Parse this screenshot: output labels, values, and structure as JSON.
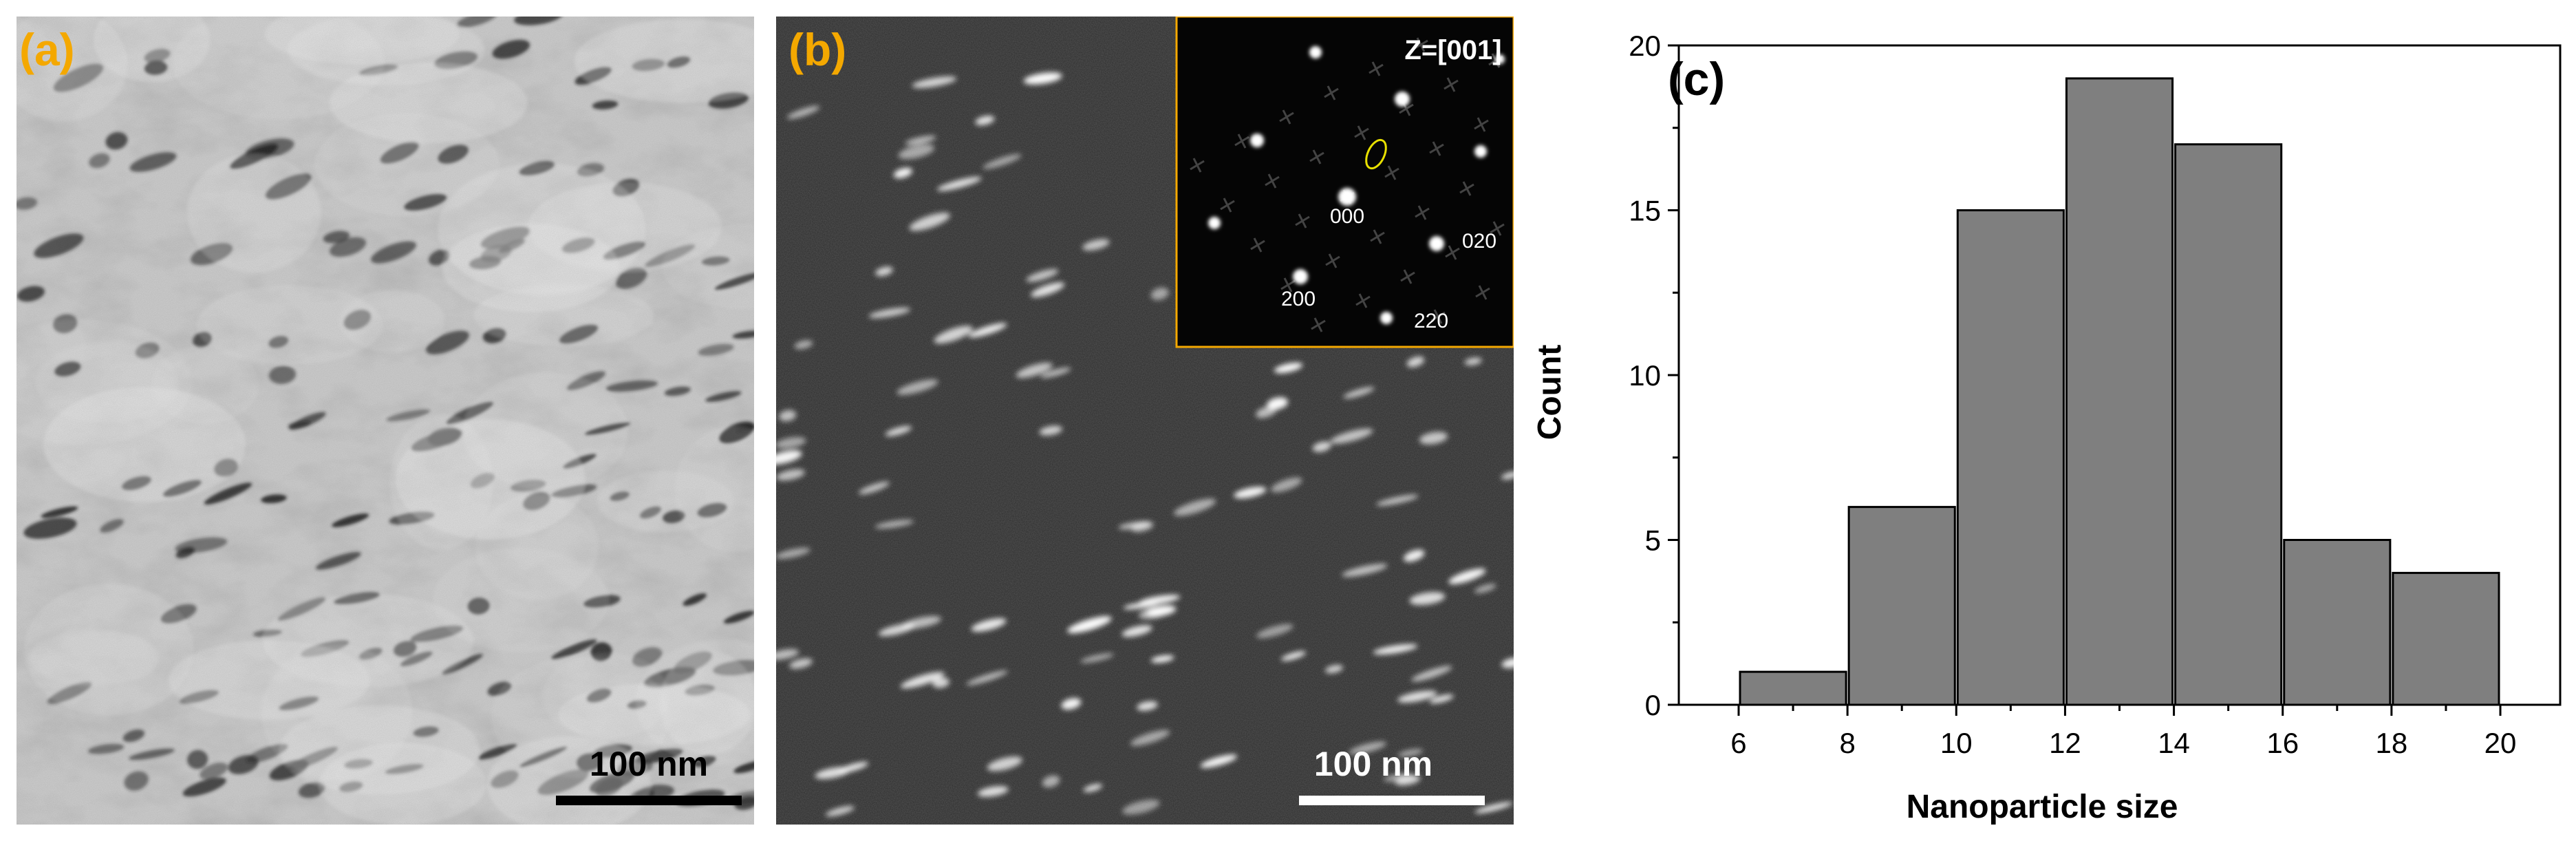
{
  "panels": {
    "a": {
      "label": "(a)",
      "scale_bar": "100 nm"
    },
    "b": {
      "label": "(b)",
      "scale_bar": "100 nm",
      "inset": {
        "zone_axis": "Z=[001]",
        "spot_labels": [
          "000",
          "020",
          "200",
          "220"
        ]
      }
    },
    "c": {
      "label": "(c)"
    }
  },
  "colors": {
    "panel_label": "#f4a800",
    "bar_fill": "#7f7f7f",
    "bar_stroke": "#000000",
    "inset_border": "#f4a800",
    "highlight_ellipse": "#e8e000"
  },
  "chart_data": {
    "type": "bar",
    "subtype": "histogram",
    "bins": [
      [
        6,
        8
      ],
      [
        8,
        10
      ],
      [
        10,
        12
      ],
      [
        12,
        14
      ],
      [
        14,
        16
      ],
      [
        16,
        18
      ],
      [
        18,
        20
      ]
    ],
    "values": [
      1,
      6,
      15,
      19,
      17,
      5,
      4
    ],
    "xlabel": "Nanoparticle size",
    "ylabel": "Count",
    "xlim": [
      4.9,
      21.1
    ],
    "ylim": [
      0,
      20
    ],
    "xticks": [
      6,
      8,
      10,
      12,
      14,
      16,
      18,
      20
    ],
    "yticks": [
      0,
      5,
      10,
      15,
      20
    ],
    "grid": false
  }
}
